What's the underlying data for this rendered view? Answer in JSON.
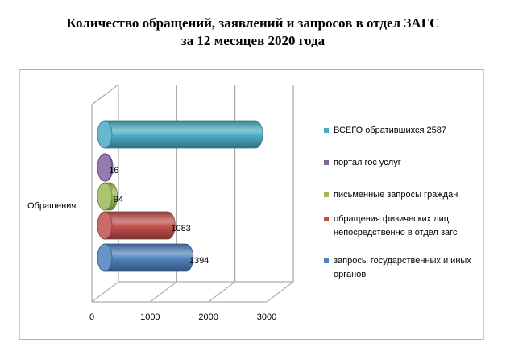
{
  "title_line1": "Количество обращений, заявлений и запросов в отдел ЗАГС",
  "title_line2": "за 12 месяцев 2020 года",
  "chart_data": {
    "type": "bar",
    "orientation": "horizontal",
    "style": "3d-cylinder",
    "category_label": "Обращения",
    "xlim": [
      0,
      3000
    ],
    "x_ticks": [
      "0",
      "1000",
      "2000",
      "3000"
    ],
    "grid": true,
    "legend_position": "right",
    "series": [
      {
        "name": "ВСЕГО обратившихся 2587",
        "value": 2587,
        "label": "",
        "color": "#4bacc6"
      },
      {
        "name": "портал гос услуг",
        "value": 16,
        "label": "16",
        "color": "#8064a2"
      },
      {
        "name": "письменные запросы граждан",
        "value": 94,
        "label": "94",
        "color": "#9bbb59"
      },
      {
        "name": "обращения физических лиц непосредственно в отдел загс",
        "value": 1083,
        "label": "1083",
        "color": "#c0504d"
      },
      {
        "name": "запросы государственных и иных органов",
        "value": 1394,
        "label": "1394",
        "color": "#4f81bd"
      }
    ]
  }
}
